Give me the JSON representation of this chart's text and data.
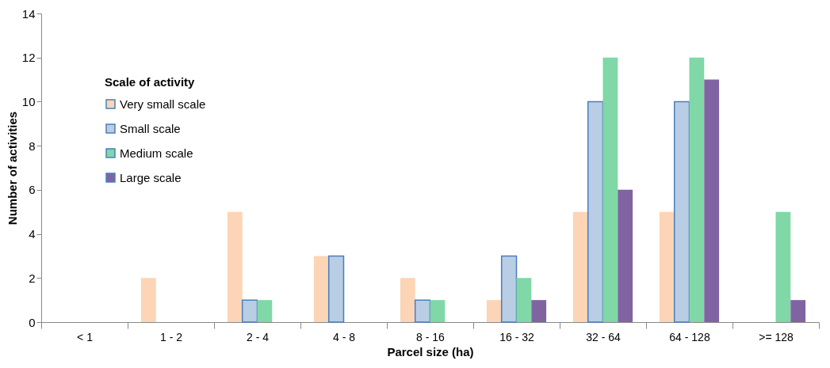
{
  "chart_data": {
    "type": "bar",
    "xlabel": "Parcel size (ha)",
    "ylabel": "Number of activities",
    "legend_title": "Scale of activity",
    "categories": [
      "< 1",
      "1 - 2",
      "2 - 4",
      "4 - 8",
      "8 - 16",
      "16 - 32",
      "32 - 64",
      "64 - 128",
      ">= 128"
    ],
    "series": [
      {
        "name": "Very small scale",
        "color": "#fbd5b5",
        "values": [
          null,
          2,
          5,
          3,
          2,
          1,
          5,
          5,
          null
        ]
      },
      {
        "name": "Small scale",
        "color": "#b9cde5",
        "values": [
          null,
          null,
          1,
          3,
          1,
          3,
          10,
          10,
          null
        ]
      },
      {
        "name": "Medium scale",
        "color": "#7fd8a6",
        "values": [
          null,
          null,
          1,
          null,
          1,
          2,
          12,
          12,
          5
        ]
      },
      {
        "name": "Large scale",
        "color": "#8064a2",
        "values": [
          null,
          null,
          null,
          null,
          null,
          1,
          6,
          11,
          1
        ]
      }
    ],
    "ylim": [
      0,
      14
    ],
    "yticks": [
      0,
      2,
      4,
      6,
      8,
      10,
      12,
      14
    ],
    "grid": false,
    "legend": "top left"
  }
}
